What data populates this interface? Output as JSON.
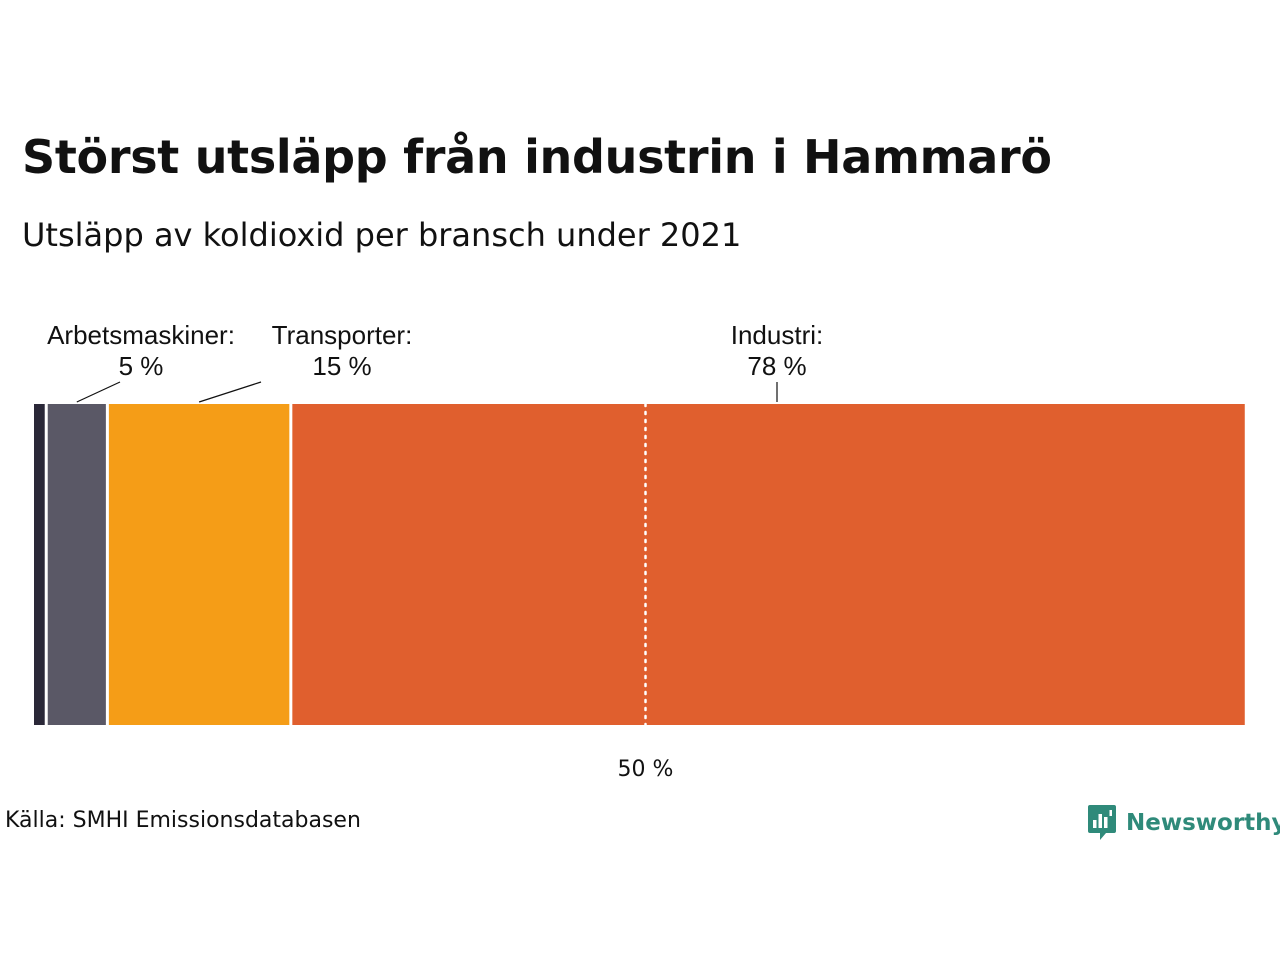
{
  "title": "Störst utsläpp från industrin i Hammarö",
  "subtitle": "Utsläpp av koldioxid per bransch under 2021",
  "source": "Källa: SMHI Emissionsdatabasen",
  "brand": {
    "name": "Newsworthy",
    "color": "#2f8a7a"
  },
  "chart_data": {
    "type": "bar",
    "stacked": true,
    "orientation": "horizontal",
    "xlim": [
      0,
      100
    ],
    "series": [
      {
        "value": 1,
        "color": "#2a2838"
      },
      {
        "name": "Arbetsmaskiner:",
        "value": 5,
        "label": "5 %",
        "color": "#5a5866"
      },
      {
        "name": "Transporter:",
        "value": 15,
        "label": "15 %",
        "color": "#f59d17"
      },
      {
        "name": "Industri:",
        "value": 78,
        "label": "78 %",
        "color": "#e05f2e"
      }
    ],
    "reference_line": {
      "value": 50,
      "label": "50 %",
      "style": "dotted"
    }
  }
}
